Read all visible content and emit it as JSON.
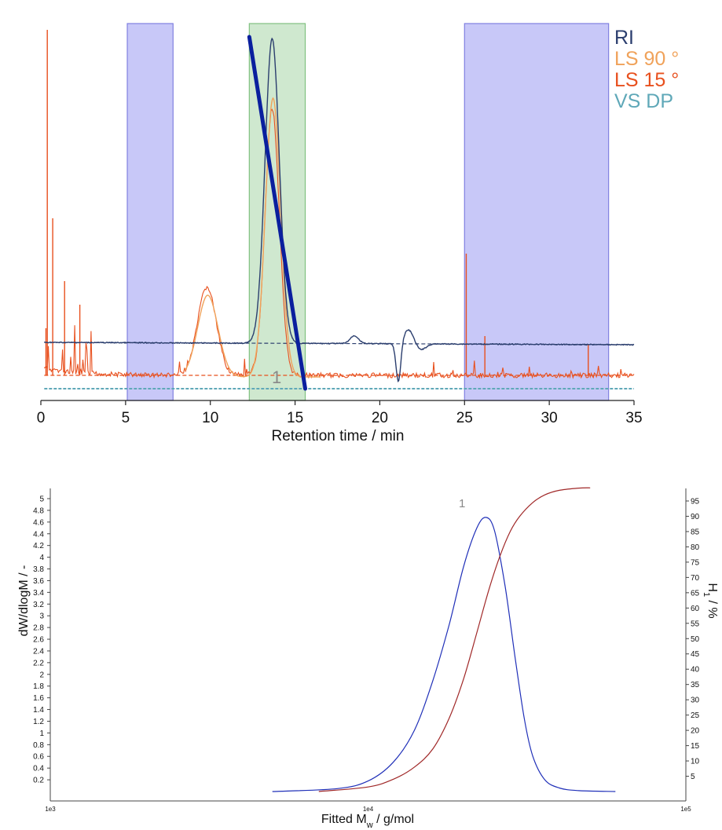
{
  "colors": {
    "RI": "#2b3e6e",
    "LS 90 °": "#f0a25a",
    "LS 15 °": "#e8501e",
    "VS DP": "#5fa8b8",
    "calibration": "#0a1f9e",
    "region_blue": "#c8c8f8",
    "region_blue_edge": "#8080e0",
    "region_green": "#cfe8cf",
    "region_green_edge": "#80c080",
    "dist_blue": "#1f2fb8",
    "dist_red": "#a02828",
    "peak_label": "#888888"
  },
  "chart_data": [
    {
      "type": "line",
      "xlabel": "Retention time / min",
      "ylabel": "",
      "xlim": [
        0,
        35
      ],
      "x_ticks": [
        "0",
        "5",
        "10",
        "15",
        "20",
        "25",
        "30",
        "35"
      ],
      "legend": [
        "RI",
        "LS 90 °",
        "LS 15 °",
        "VS DP"
      ],
      "legend_position": "top-right",
      "peak_label": "1",
      "regions": [
        {
          "kind": "baseline",
          "x": [
            5.1,
            7.8
          ]
        },
        {
          "kind": "peak",
          "x": [
            12.3,
            15.6
          ]
        },
        {
          "kind": "baseline",
          "x": [
            25.0,
            33.5
          ]
        }
      ],
      "calibration_line": {
        "x": [
          12.3,
          15.6
        ]
      }
    },
    {
      "type": "line",
      "xlabel": "Fitted Mw / g/mol",
      "ylabel": "dW/dlogM / -",
      "y2label": "H1 / %",
      "xscale": "log",
      "xlim": [
        1000,
        100000
      ],
      "x_ticks": [
        "1e3",
        "1e4",
        "1e5"
      ],
      "ylim": [
        0,
        5.2
      ],
      "y_ticks": [
        "0.2",
        "0.4",
        "0.6",
        "0.8",
        "1",
        "1.2",
        "1.4",
        "1.6",
        "1.8",
        "2",
        "2.2",
        "2.4",
        "2.6",
        "2.8",
        "3",
        "3.2",
        "3.4",
        "3.6",
        "3.8",
        "4",
        "4.2",
        "4.4",
        "4.6",
        "4.8",
        "5"
      ],
      "y2lim": [
        0,
        100
      ],
      "y2_ticks": [
        "5",
        "10",
        "15",
        "20",
        "25",
        "30",
        "35",
        "40",
        "45",
        "50",
        "55",
        "60",
        "65",
        "70",
        "75",
        "80",
        "85",
        "90",
        "95"
      ],
      "peak_label": "1",
      "series": [
        {
          "axis": "left",
          "x": [
            5000,
            8000,
            10000,
            12000,
            14000,
            16000,
            18000,
            20000,
            22000,
            23500,
            25000,
            27000,
            29000,
            31000,
            33000,
            36000,
            40000,
            46000,
            60000
          ],
          "y": [
            0,
            0.05,
            0.18,
            0.5,
            1.05,
            1.9,
            2.85,
            3.85,
            4.5,
            4.68,
            4.45,
            3.5,
            2.3,
            1.25,
            0.6,
            0.2,
            0.06,
            0.015,
            0
          ]
        },
        {
          "axis": "right",
          "x": [
            7000,
            10000,
            12000,
            14000,
            16000,
            18000,
            20000,
            22000,
            24000,
            26000,
            28000,
            30000,
            33000,
            36000,
            40000,
            46000,
            50000
          ],
          "y": [
            0,
            1.5,
            4,
            8,
            14,
            24,
            37,
            52,
            66,
            77,
            85,
            90,
            94.5,
            97,
            98.5,
            99.2,
            99.3
          ]
        }
      ]
    }
  ],
  "layout_labels": {
    "y2label_main": "H",
    "y2label_sub": "1",
    "y2label_rest": " / %",
    "xlabel_main": "Fitted M",
    "xlabel_sub": "w",
    "xlabel_rest": " / g/mol"
  }
}
